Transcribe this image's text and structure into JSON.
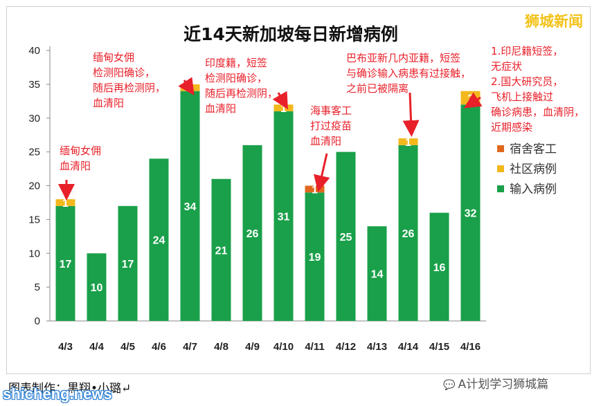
{
  "brand": "狮城新闻",
  "footer": {
    "credit": "图表制作：黒翔•小璐↵",
    "source": "A计划学习狮城篇",
    "watermark": "shicheng.news"
  },
  "chart_data": {
    "type": "bar",
    "stacked": true,
    "title": "近14天新加坡每日新增病例",
    "categories": [
      "4/3",
      "4/4",
      "4/5",
      "4/6",
      "4/7",
      "4/8",
      "4/9",
      "4/10",
      "4/11",
      "4/12",
      "4/13",
      "4/14",
      "4/15",
      "4/16"
    ],
    "ylim": [
      0,
      40
    ],
    "yticks": [
      0,
      5,
      10,
      15,
      20,
      25,
      30,
      35,
      40
    ],
    "grid": false,
    "legend_position": "right",
    "series": [
      {
        "name": "输入病例",
        "color": "#1aa04a",
        "values": [
          17,
          10,
          17,
          24,
          34,
          21,
          26,
          31,
          19,
          25,
          14,
          26,
          16,
          32
        ]
      },
      {
        "name": "社区病例",
        "color": "#f2b81c",
        "values": [
          1,
          0,
          0,
          0,
          1,
          0,
          0,
          1,
          0,
          0,
          0,
          1,
          0,
          2
        ]
      },
      {
        "name": "宿舍客工",
        "color": "#e0681e",
        "values": [
          0,
          0,
          0,
          0,
          0,
          0,
          0,
          0,
          1,
          0,
          0,
          0,
          0,
          0
        ]
      }
    ],
    "legend_order": [
      2,
      1,
      0
    ],
    "annotations": [
      {
        "target": "4/3",
        "lines": [
          "缅甸女佣",
          "血清阳"
        ]
      },
      {
        "target": "4/7",
        "lines": [
          "缅甸女佣",
          "检测阳确诊，",
          "随后再检测阴，",
          "血清阳"
        ]
      },
      {
        "target": "4/10",
        "lines": [
          "印度籍，短签",
          "检测阳确诊，",
          "随后再检测阴，",
          "血清阳"
        ]
      },
      {
        "target": "4/11",
        "lines": [
          "海事客工",
          "打过疫苗",
          "血清阳"
        ]
      },
      {
        "target": "4/14",
        "lines": [
          "巴布亚新几内亚籍，短签",
          "与确诊输入病患有过接触，",
          "之前已被隔离"
        ]
      },
      {
        "target": "4/16",
        "lines": [
          "1.印尼籍短签，",
          "无症状",
          "2.国大研究员，",
          "飞机上接触过",
          "确诊病患，血清阴，",
          "近期感染"
        ]
      }
    ]
  }
}
